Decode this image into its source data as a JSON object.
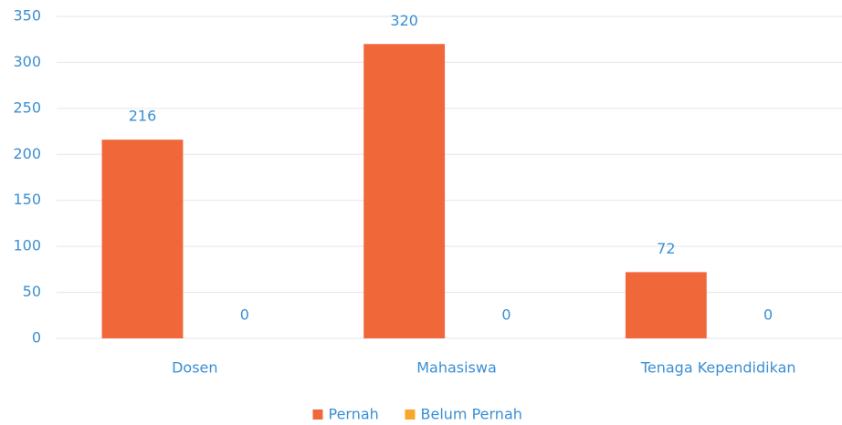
{
  "chart_data": {
    "type": "bar",
    "categories": [
      "Dosen",
      "Mahasiswa",
      "Tenaga Kependidikan"
    ],
    "series": [
      {
        "name": "Pernah",
        "color": "#f0673a",
        "values": [
          216,
          320,
          72
        ]
      },
      {
        "name": "Belum Pernah",
        "color": "#f7a82b",
        "values": [
          0,
          0,
          0
        ]
      }
    ],
    "ylim": [
      0,
      350
    ],
    "yticks": [
      0,
      50,
      100,
      150,
      200,
      250,
      300,
      350
    ],
    "grid": true,
    "legend": "bottom"
  }
}
